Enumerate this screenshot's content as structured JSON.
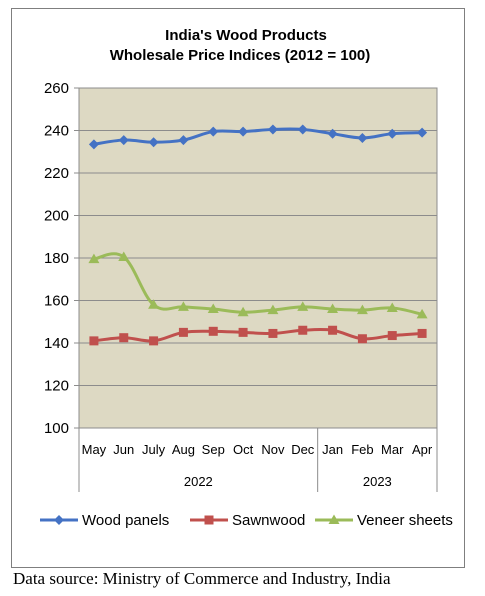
{
  "chart_data": {
    "type": "line",
    "title": "India's Wood Products",
    "subtitle": "Wholesale Price Indices (2012 = 100)",
    "categories": [
      "May",
      "Jun",
      "July",
      "Aug",
      "Sep",
      "Oct",
      "Nov",
      "Dec",
      "Jan",
      "Feb",
      "Mar",
      "Apr"
    ],
    "groups": [
      {
        "label": "2022",
        "count": 8
      },
      {
        "label": "2023",
        "count": 4
      }
    ],
    "ylim": [
      100,
      260
    ],
    "yticks": [
      100,
      120,
      140,
      160,
      180,
      200,
      220,
      240,
      260
    ],
    "grid": true,
    "legend_position": "bottom",
    "series": [
      {
        "name": "Wood panels",
        "color": "#4472c4",
        "marker": "diamond",
        "values": [
          233.5,
          235.5,
          234.5,
          235.5,
          239.5,
          239.5,
          240.5,
          240.5,
          238.5,
          236.5,
          238.5,
          239.0
        ]
      },
      {
        "name": "Sawnwood",
        "color": "#c0504d",
        "marker": "square",
        "values": [
          141.0,
          142.5,
          141.0,
          145.0,
          145.5,
          145.0,
          144.5,
          146.0,
          146.0,
          142.0,
          143.5,
          144.5
        ]
      },
      {
        "name": "Veneer sheets",
        "color": "#9bbb59",
        "marker": "triangle",
        "values": [
          179.5,
          180.5,
          158.0,
          157.0,
          156.0,
          154.5,
          155.5,
          157.0,
          156.0,
          155.5,
          156.5,
          153.5
        ]
      }
    ],
    "plot_background": "#ddd9c3"
  },
  "source_note": "Data source: Ministry of Commerce and Industry, India"
}
